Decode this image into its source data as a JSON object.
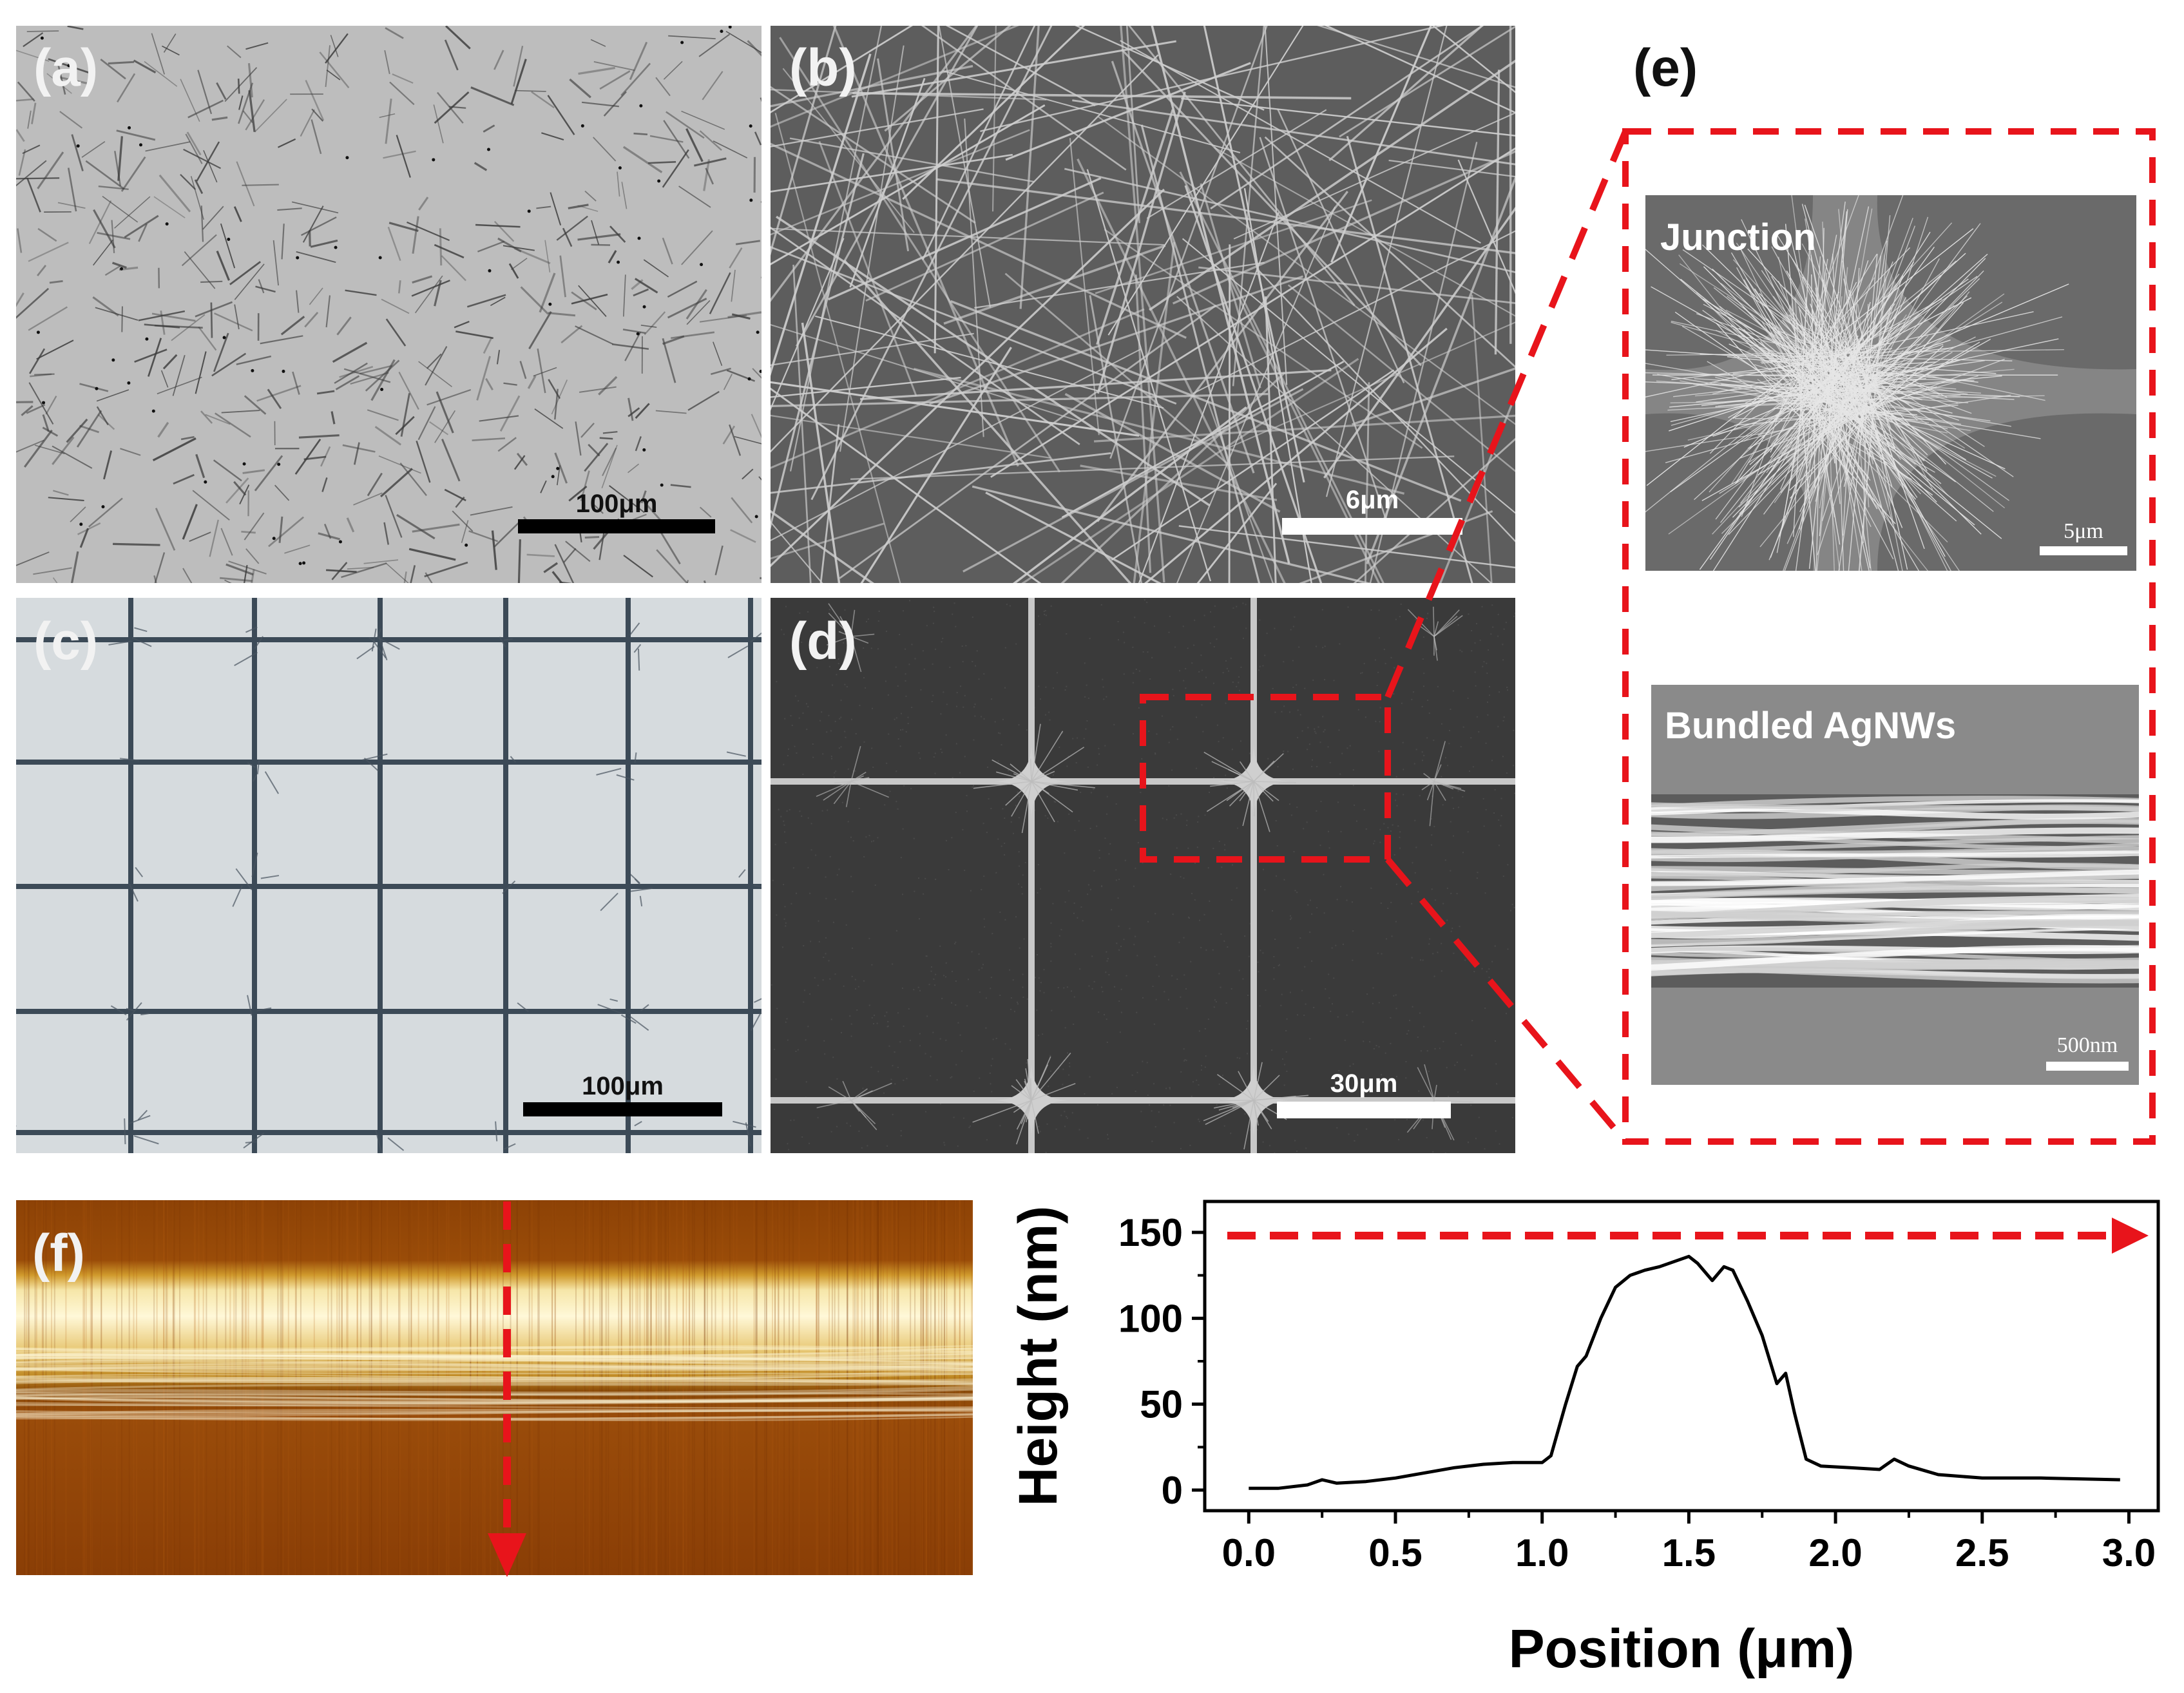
{
  "panels": {
    "a": {
      "label": "(a)",
      "scale_bar": "100μm"
    },
    "b": {
      "label": "(b)",
      "scale_bar": "6μm"
    },
    "c": {
      "label": "(c)",
      "scale_bar": "100μm"
    },
    "d": {
      "label": "(d)",
      "scale_bar": "30μm"
    },
    "e": {
      "label": "(e)",
      "top": {
        "title": "Junction",
        "scale_bar": "5μm"
      },
      "bottom": {
        "title": "Bundled AgNWs",
        "scale_bar": "500nm"
      }
    },
    "f": {
      "label": "(f)"
    }
  },
  "colors": {
    "highlight": "#e8141b",
    "afm_dark": "#8a3e06",
    "afm_bright": "#fff4c0"
  },
  "chart_data": {
    "type": "line",
    "xlabel": "Position (μm)",
    "ylabel": "Height (nm)",
    "xlim": [
      -0.15,
      3.1
    ],
    "ylim": [
      -12,
      168
    ],
    "xticks": [
      0.0,
      0.5,
      1.0,
      1.5,
      2.0,
      2.5,
      3.0
    ],
    "xtick_labels": [
      "0.0",
      "0.5",
      "1.0",
      "1.5",
      "2.0",
      "2.5",
      "3.0"
    ],
    "yticks": [
      0,
      50,
      100,
      150
    ],
    "ytick_labels": [
      "0",
      "50",
      "100",
      "150"
    ],
    "series": [
      {
        "x": [
          0.0,
          0.1,
          0.2,
          0.25,
          0.3,
          0.4,
          0.5,
          0.6,
          0.7,
          0.8,
          0.9,
          1.0,
          1.03,
          1.08,
          1.12,
          1.15,
          1.2,
          1.25,
          1.3,
          1.35,
          1.4,
          1.45,
          1.5,
          1.53,
          1.58,
          1.62,
          1.65,
          1.7,
          1.75,
          1.8,
          1.83,
          1.86,
          1.9,
          1.95,
          2.05,
          2.15,
          2.2,
          2.25,
          2.35,
          2.5,
          2.7,
          2.97
        ],
        "y": [
          1,
          1,
          3,
          6,
          4,
          5,
          7,
          10,
          13,
          15,
          16,
          16,
          20,
          50,
          72,
          78,
          100,
          118,
          125,
          128,
          130,
          133,
          136,
          132,
          122,
          130,
          128,
          110,
          90,
          62,
          68,
          45,
          18,
          14,
          13,
          12,
          18,
          14,
          9,
          7,
          7,
          6
        ]
      }
    ],
    "grid": false
  }
}
